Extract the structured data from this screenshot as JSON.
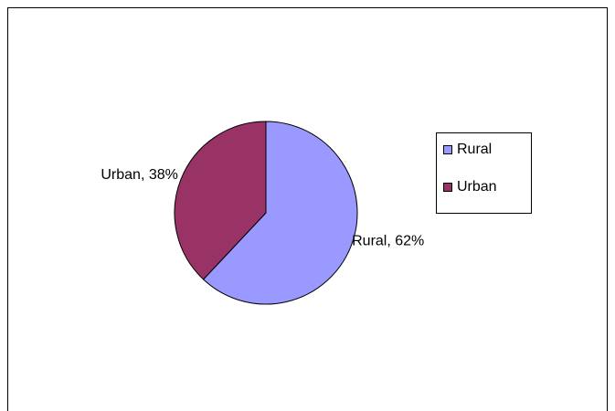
{
  "chart_data": {
    "type": "pie",
    "categories": [
      "Rural",
      "Urban"
    ],
    "values": [
      62,
      38
    ],
    "value_labels": [
      "Rural, 62%",
      "Urban, 38%"
    ],
    "colors": [
      "#9999ff",
      "#993366"
    ],
    "legend": "right"
  }
}
